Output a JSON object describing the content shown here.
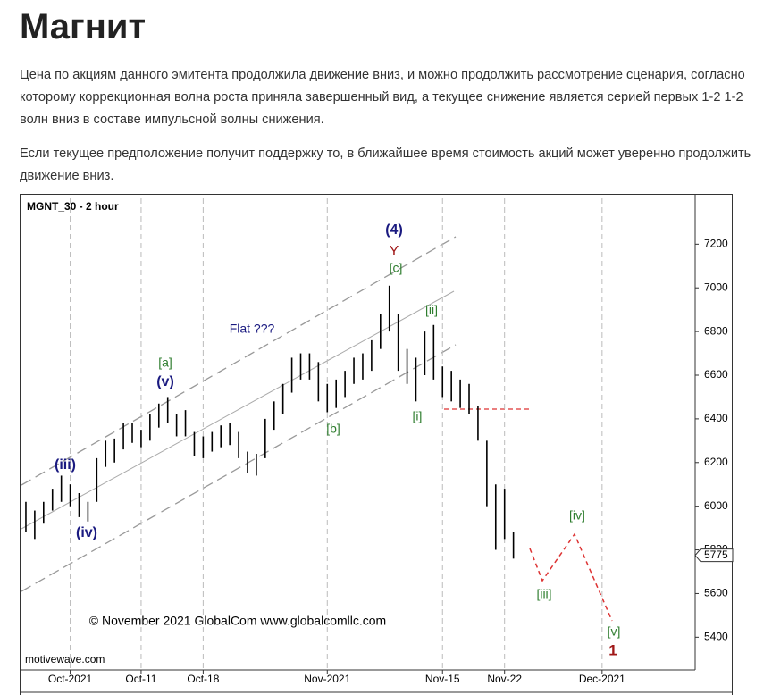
{
  "title": "Магнит",
  "paragraphs": [
    "Цена по акциям данного эмитента продолжила движение вниз, и можно продолжить рассмотрение сценария, согласно которому коррекционная волна роста приняла завершенный вид, а текущее снижение является серией первых 1-2 1-2 волн вниз в составе импульсной волны снижения.",
    "Если текущее предположение получит поддержку то, в ближайшее время стоимость акций может уверенно продолжить движение вниз."
  ],
  "chart_data": {
    "type": "ohlc",
    "title": "MGNT_30 - 2 hour",
    "watermark": "motivewave.com",
    "copyright": "© November 2021 GlobalCom www.globalcomllc.com",
    "categories": [
      null,
      null,
      null,
      null,
      null,
      "Oct-2021",
      null,
      null,
      null,
      null,
      null,
      null,
      null,
      "Oct-11",
      null,
      null,
      null,
      null,
      null,
      null,
      "Oct-18",
      null,
      null,
      null,
      null,
      null,
      null,
      null,
      null,
      null,
      null,
      null,
      null,
      null,
      "Nov-2021",
      null,
      null,
      null,
      null,
      null,
      null,
      null,
      null,
      null,
      null,
      null,
      null,
      "Nov-15",
      null,
      null,
      null,
      null,
      null,
      null,
      "Nov-22",
      null,
      null,
      null,
      null,
      null,
      null,
      null,
      null,
      null,
      null,
      "Dec-2021",
      null,
      null,
      null,
      null,
      null,
      null,
      null,
      null,
      null,
      null
    ],
    "series": [
      {
        "name": "High",
        "values": [
          6020,
          5980,
          6020,
          6080,
          6140,
          6100,
          6060,
          6020,
          6220,
          6300,
          6310,
          6380,
          6380,
          6350,
          6420,
          6470,
          6500,
          6420,
          6440,
          6340,
          6320,
          6340,
          6370,
          6380,
          6340,
          6250,
          6240,
          6400,
          6480,
          6560,
          6680,
          6700,
          6700,
          6660,
          6560,
          6580,
          6620,
          6680,
          6700,
          6760,
          6880,
          7010,
          6880,
          6720,
          6680,
          6800,
          6830,
          6640,
          6620,
          6580,
          6560,
          6460,
          6300,
          6100,
          6080,
          5880,
          null,
          null,
          null,
          null,
          null,
          null,
          null,
          null,
          null,
          null,
          null,
          null,
          null,
          null,
          null,
          null,
          null,
          null,
          null,
          null
        ]
      },
      {
        "name": "Low",
        "values": [
          5880,
          5850,
          5920,
          5980,
          6020,
          6000,
          5950,
          5930,
          6020,
          6180,
          6200,
          6260,
          6290,
          6270,
          6300,
          6360,
          6380,
          6320,
          6320,
          6230,
          6220,
          6250,
          6270,
          6280,
          6220,
          6150,
          6140,
          6220,
          6350,
          6420,
          6520,
          6580,
          6580,
          6480,
          6430,
          6450,
          6500,
          6560,
          6580,
          6620,
          6720,
          6800,
          6620,
          6560,
          6480,
          6600,
          6580,
          6500,
          6480,
          6450,
          6420,
          6300,
          6000,
          5800,
          5850,
          5760,
          null,
          null,
          null,
          null,
          null,
          null,
          null,
          null,
          null,
          null,
          null,
          null,
          null,
          null,
          null,
          null,
          null,
          null,
          null,
          null
        ]
      }
    ],
    "color": "#000000",
    "last_value": 5775,
    "ylim": [
      5250,
      7410
    ],
    "yticks": [
      5400,
      5600,
      5800,
      6000,
      6200,
      6400,
      6600,
      6800,
      7000,
      7200
    ],
    "annotations": [
      "(4)",
      "Y",
      "[c]",
      "[ii]",
      "Flat ???",
      "[a]",
      "(v)",
      "[i]",
      "[b]",
      "(iii)",
      "(iv)",
      "[iv]",
      "[iii]",
      "[v]",
      "1"
    ]
  }
}
